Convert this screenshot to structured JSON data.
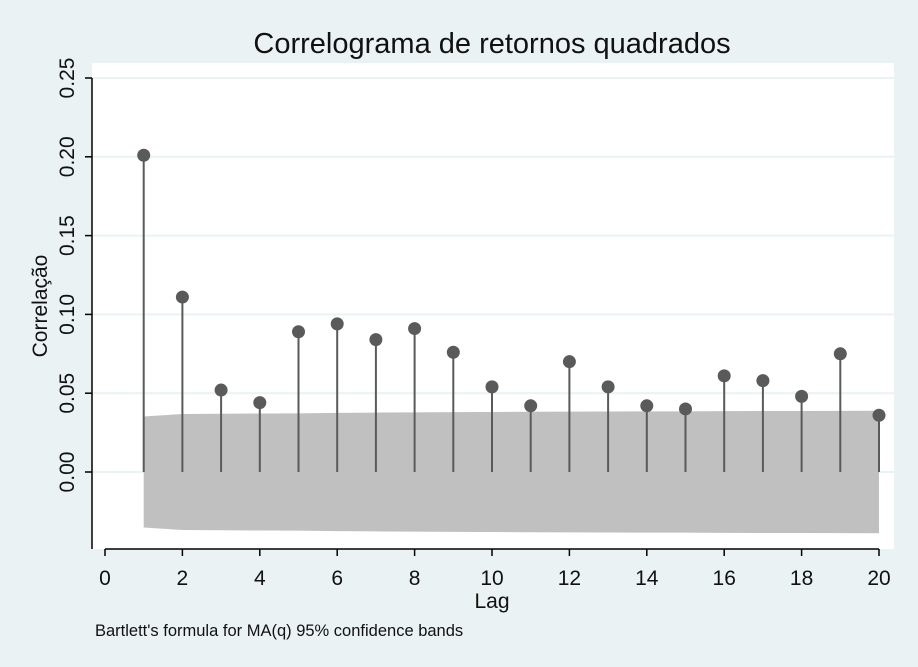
{
  "chart_data": {
    "type": "scatter",
    "style": "stem",
    "title": "Correlograma de retornos quadrados",
    "xlabel": "Lag",
    "ylabel": "Correlação",
    "note": "Bartlett's formula for MA(q) 95% confidence bands",
    "xlim": [
      0,
      20
    ],
    "ylim": [
      -0.048,
      0.255
    ],
    "x_ticks": [
      "0",
      "2",
      "4",
      "6",
      "8",
      "10",
      "12",
      "14",
      "16",
      "18",
      "20"
    ],
    "y_ticks": [
      "0.00",
      "0.05",
      "0.10",
      "0.15",
      "0.20",
      "0.25"
    ],
    "grid": true,
    "legend": "none",
    "series": [
      {
        "x": [
          1,
          2,
          3,
          4,
          5,
          6,
          7,
          8,
          9,
          10,
          11,
          12,
          13,
          14,
          15,
          16,
          17,
          18,
          19,
          20
        ],
        "values": [
          0.201,
          0.111,
          0.052,
          0.044,
          0.089,
          0.094,
          0.084,
          0.091,
          0.076,
          0.054,
          0.042,
          0.07,
          0.054,
          0.042,
          0.04,
          0.061,
          0.058,
          0.048,
          0.075,
          0.036
        ]
      }
    ],
    "confidence_band": {
      "x": [
        1,
        2,
        3,
        4,
        5,
        6,
        7,
        8,
        9,
        10,
        11,
        12,
        13,
        14,
        15,
        16,
        17,
        18,
        19,
        20
      ],
      "upper": [
        0.0352,
        0.0368,
        0.037,
        0.0371,
        0.0372,
        0.0375,
        0.0377,
        0.0378,
        0.038,
        0.0381,
        0.0382,
        0.0383,
        0.0384,
        0.0385,
        0.0385,
        0.0386,
        0.0387,
        0.0387,
        0.0388,
        0.0389
      ]
    },
    "colors": {
      "background": "#eaf2f3",
      "plot_area": "#ffffff",
      "band": "#c0c0c0",
      "stem": "#5a5a5a",
      "marker": "#5a5a5a",
      "grid": "#eaf2f3",
      "text": "#111111"
    }
  }
}
